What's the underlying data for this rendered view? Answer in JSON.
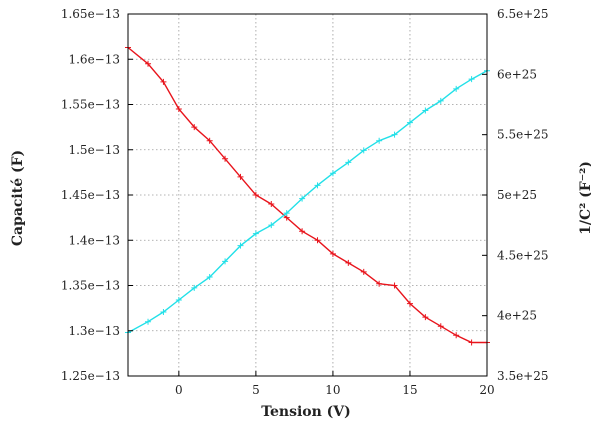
{
  "chart_data": {
    "type": "line",
    "xlabel": "Tension (V)",
    "ylabel_left": "Capacité (F)",
    "ylabel_right": "1/C² (F⁻²)",
    "xlim": [
      -3.3,
      20
    ],
    "ylim_left": [
      1.25e-13,
      1.65e-13
    ],
    "ylim_right": [
      3.5e+25,
      6.5e+25
    ],
    "x_ticks": [
      0,
      5,
      10,
      15,
      20
    ],
    "x_tick_labels": [
      "0",
      "5",
      "10",
      "15",
      "20"
    ],
    "y_left_ticks": [
      1.25e-13,
      1.3e-13,
      1.35e-13,
      1.4e-13,
      1.45e-13,
      1.5e-13,
      1.55e-13,
      1.6e-13,
      1.65e-13
    ],
    "y_left_tick_labels": [
      "1.25e−13",
      "1.3e−13",
      "1.35e−13",
      "1.4e−13",
      "1.45e−13",
      "1.5e−13",
      "1.55e−13",
      "1.6e−13",
      "1.65e−13"
    ],
    "y_right_ticks": [
      3.5e+25,
      4e+25,
      4.5e+25,
      5e+25,
      5.5e+25,
      6e+25,
      6.5e+25
    ],
    "y_right_tick_labels": [
      "3.5e+25",
      "4e+25",
      "4.5e+25",
      "5e+25",
      "5.5e+25",
      "6e+25",
      "6.5e+25"
    ],
    "grid": true,
    "series": [
      {
        "axis": "left",
        "color": "#e8141c",
        "x": [
          -3.3,
          -2,
          -1,
          0,
          1,
          2,
          3,
          4,
          5,
          6,
          7,
          8,
          9,
          10,
          11,
          12,
          13,
          14,
          15,
          16,
          17,
          18,
          19,
          20
        ],
        "values": [
          1.613e-13,
          1.595e-13,
          1.575e-13,
          1.545e-13,
          1.525e-13,
          1.51e-13,
          1.49e-13,
          1.47e-13,
          1.45e-13,
          1.44e-13,
          1.425e-13,
          1.41e-13,
          1.4e-13,
          1.385e-13,
          1.375e-13,
          1.365e-13,
          1.352e-13,
          1.35e-13,
          1.33e-13,
          1.315e-13,
          1.305e-13,
          1.295e-13,
          1.287e-13,
          1.287e-13
        ]
      },
      {
        "axis": "right",
        "color": "#22e0e8",
        "x": [
          -3.3,
          -2,
          -1,
          0,
          1,
          2,
          3,
          4,
          5,
          6,
          7,
          8,
          9,
          10,
          11,
          12,
          13,
          14,
          15,
          16,
          17,
          18,
          19,
          20
        ],
        "values": [
          3.86e+25,
          3.95e+25,
          4.03e+25,
          4.13e+25,
          4.23e+25,
          4.32e+25,
          4.45e+25,
          4.58e+25,
          4.68e+25,
          4.75e+25,
          4.85e+25,
          4.97e+25,
          5.08e+25,
          5.18e+25,
          5.27e+25,
          5.37e+25,
          5.45e+25,
          5.5e+25,
          5.6e+25,
          5.7e+25,
          5.78e+25,
          5.88e+25,
          5.96e+25,
          6.03e+25
        ]
      }
    ]
  }
}
